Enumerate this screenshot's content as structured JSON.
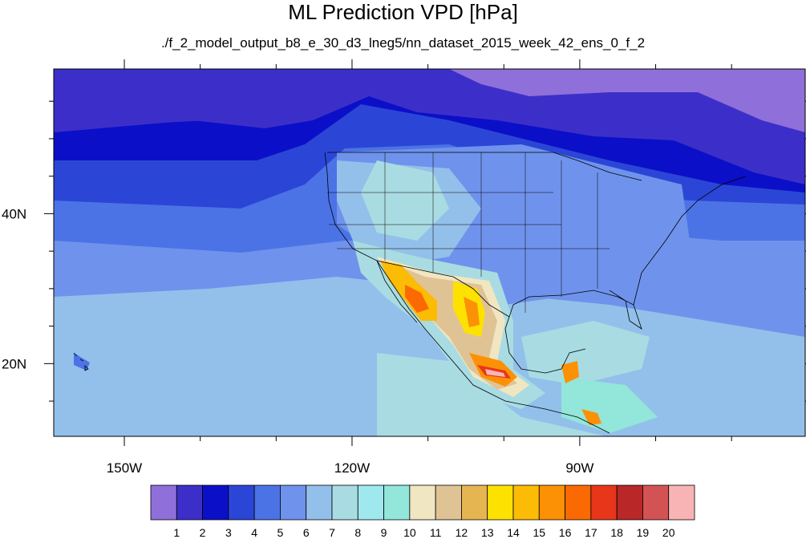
{
  "chart_data": {
    "type": "heatmap",
    "title": "ML Prediction VPD [hPa]",
    "subtitle": "./f_2_model_output_b8_e_30_d3_lneg5/nn_dataset_2015_week_42_ens_0_f_2",
    "xlabel": "",
    "ylabel": "",
    "x_ticks": [
      {
        "value": -150,
        "label": "150W"
      },
      {
        "value": -120,
        "label": "120W"
      },
      {
        "value": -90,
        "label": "90W"
      }
    ],
    "y_ticks": [
      {
        "value": 40,
        "label": "40N"
      },
      {
        "value": 20,
        "label": "20N"
      }
    ],
    "xlim": [
      -159.3,
      -60.3
    ],
    "ylim": [
      10.3,
      59.3
    ],
    "colorbar": {
      "levels": [
        1,
        2,
        3,
        4,
        5,
        6,
        7,
        8,
        9,
        10,
        11,
        12,
        13,
        14,
        15,
        16,
        17,
        18,
        19,
        20
      ],
      "colors": [
        "#8f6fd9",
        "#3c2fc9",
        "#0c0fc8",
        "#2b46d6",
        "#4c73e6",
        "#6f93ec",
        "#93c0ea",
        "#a8dce2",
        "#9ee8ee",
        "#93e6da",
        "#f1e6c2",
        "#e0c395",
        "#e5b552",
        "#fde100",
        "#fcbb05",
        "#fc9105",
        "#fb6903",
        "#e8361b",
        "#b92728",
        "#d35354",
        "#f8b4b4"
      ]
    }
  }
}
